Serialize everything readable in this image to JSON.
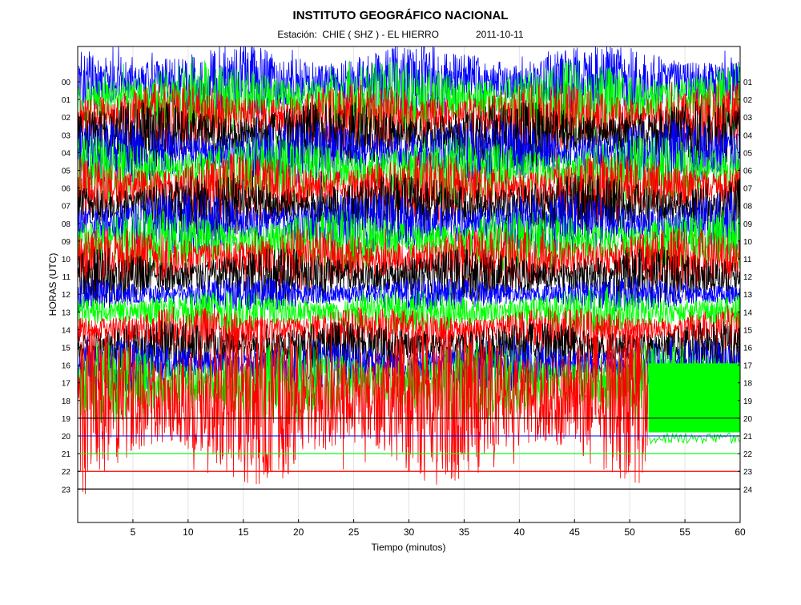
{
  "header": {
    "title": "INSTITUTO GEOGRÁFICO NACIONAL",
    "station": "Estación:  CHIE ( SHZ ) - EL HIERRO",
    "date": "2011-10-11"
  },
  "chart_data": {
    "type": "line",
    "subtype": "helicorder",
    "title": "INSTITUTO GEOGRÁFICO NACIONAL",
    "xlabel": "Tiempo (minutos)",
    "ylabel": "HORAS (UTC)",
    "xlim": [
      0,
      60
    ],
    "x_ticks": [
      5,
      10,
      15,
      20,
      25,
      30,
      35,
      40,
      45,
      50,
      55,
      60
    ],
    "left_hour_labels": [
      "00",
      "01",
      "02",
      "03",
      "04",
      "05",
      "06",
      "07",
      "08",
      "09",
      "10",
      "11",
      "12",
      "13",
      "14",
      "15",
      "16",
      "17",
      "18",
      "19",
      "20",
      "21",
      "22",
      "23"
    ],
    "right_hour_labels": [
      "01",
      "02",
      "03",
      "04",
      "05",
      "06",
      "07",
      "08",
      "09",
      "10",
      "11",
      "12",
      "13",
      "14",
      "15",
      "16",
      "17",
      "18",
      "19",
      "20",
      "21",
      "22",
      "23",
      "24"
    ],
    "grid": "vertical",
    "trace_color_cycle": [
      "#0000ff",
      "#00ff00",
      "#ff0000",
      "#000000"
    ],
    "series": [
      {
        "hour": 0,
        "color": "#0000ff",
        "amplitude_rows": 2.2,
        "end_minute": 60
      },
      {
        "hour": 1,
        "color": "#00ff00",
        "amplitude_rows": 2.2,
        "end_minute": 60
      },
      {
        "hour": 2,
        "color": "#ff0000",
        "amplitude_rows": 2.0,
        "end_minute": 60
      },
      {
        "hour": 3,
        "color": "#000000",
        "amplitude_rows": 2.0,
        "end_minute": 60
      },
      {
        "hour": 4,
        "color": "#0000ff",
        "amplitude_rows": 1.9,
        "end_minute": 60
      },
      {
        "hour": 5,
        "color": "#00ff00",
        "amplitude_rows": 2.0,
        "end_minute": 60
      },
      {
        "hour": 6,
        "color": "#ff0000",
        "amplitude_rows": 2.0,
        "end_minute": 60
      },
      {
        "hour": 7,
        "color": "#000000",
        "amplitude_rows": 1.8,
        "end_minute": 60
      },
      {
        "hour": 8,
        "color": "#0000ff",
        "amplitude_rows": 1.8,
        "end_minute": 60
      },
      {
        "hour": 9,
        "color": "#00ff00",
        "amplitude_rows": 1.8,
        "end_minute": 60
      },
      {
        "hour": 10,
        "color": "#ff0000",
        "amplitude_rows": 1.8,
        "end_minute": 60
      },
      {
        "hour": 11,
        "color": "#000000",
        "amplitude_rows": 1.6,
        "end_minute": 60
      },
      {
        "hour": 12,
        "color": "#0000ff",
        "amplitude_rows": 1.0,
        "end_minute": 60
      },
      {
        "hour": 13,
        "color": "#00ff00",
        "amplitude_rows": 1.3,
        "end_minute": 60
      },
      {
        "hour": 14,
        "color": "#ff0000",
        "amplitude_rows": 1.3,
        "end_minute": 60
      },
      {
        "hour": 15,
        "color": "#000000",
        "amplitude_rows": 1.5,
        "end_minute": 60
      },
      {
        "hour": 16,
        "color": "#0000ff",
        "amplitude_rows": 1.5,
        "end_minute": 60
      },
      {
        "hour": 17,
        "color": "#00ff00",
        "amplitude_rows": 2.3,
        "end_minute": 60
      },
      {
        "hour": 18,
        "color": "#ff0000",
        "amplitude_rows": 4.8,
        "end_minute": 51.7
      },
      {
        "hour": 19,
        "color": "#000000",
        "amplitude_rows": 0,
        "end_minute": 60
      },
      {
        "hour": 20,
        "color": "#0000ff",
        "amplitude_rows": 0,
        "end_minute": 60
      },
      {
        "hour": 21,
        "color": "#00ff00",
        "amplitude_rows": 0,
        "end_minute": 60
      },
      {
        "hour": 22,
        "color": "#ff0000",
        "amplitude_rows": 0,
        "end_minute": 60
      },
      {
        "hour": 23,
        "color": "#000000",
        "amplitude_rows": 0,
        "end_minute": 60
      }
    ],
    "green_block_after_gap": {
      "color": "#00ff00",
      "from_minute": 51.7,
      "to_minute": 60,
      "top_hour": 15.9,
      "bottom_hour": 19.8
    }
  }
}
